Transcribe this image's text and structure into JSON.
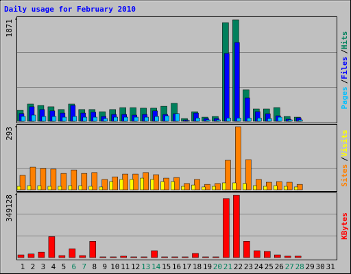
{
  "title": "Daily usage for February 2010",
  "legend_separator": "/",
  "chart_data": [
    {
      "type": "bar",
      "ylim": [
        0,
        1871
      ],
      "yticks": [
        1871
      ],
      "series": [
        {
          "name": "Pages",
          "color": "#00c0ff",
          "values": [
            90,
            113,
            88,
            88,
            75,
            88,
            75,
            75,
            50,
            75,
            75,
            75,
            75,
            88,
            100,
            140,
            12,
            60,
            25,
            25,
            60,
            60,
            60,
            60,
            50,
            75,
            25,
            25,
            null,
            null,
            null
          ]
        },
        {
          "name": "Files",
          "color": "#0000ff",
          "values": [
            140,
            265,
            215,
            190,
            150,
            290,
            150,
            165,
            88,
            125,
            125,
            113,
            125,
            190,
            125,
            138,
            25,
            150,
            50,
            50,
            1243,
            1444,
            427,
            176,
            138,
            100,
            38,
            63,
            null,
            null,
            null
          ]
        },
        {
          "name": "Hits",
          "color": "#00805c",
          "values": [
            200,
            315,
            290,
            265,
            215,
            315,
            215,
            215,
            175,
            215,
            250,
            250,
            240,
            240,
            275,
            330,
            50,
            175,
            75,
            88,
            1808,
            1859,
            578,
            226,
            226,
            251,
            88,
            75,
            null,
            null,
            null
          ]
        }
      ]
    },
    {
      "type": "bar",
      "ylim": [
        0,
        293
      ],
      "yticks": [
        293
      ],
      "series": [
        {
          "name": "Sites",
          "color": "#ff8000",
          "values": [
            67,
            105,
            99,
            96,
            76,
            92,
            76,
            80,
            48,
            60,
            73,
            73,
            80,
            70,
            54,
            57,
            29,
            48,
            25,
            29,
            137,
            293,
            140,
            48,
            35,
            38,
            35,
            25,
            null,
            null,
            null
          ]
        },
        {
          "name": "Visits",
          "color": "#ffff00",
          "values": [
            16,
            19,
            19,
            16,
            16,
            19,
            19,
            16,
            13,
            38,
            48,
            48,
            54,
            48,
            38,
            38,
            16,
            22,
            13,
            16,
            32,
            32,
            29,
            19,
            16,
            19,
            16,
            13,
            null,
            null,
            null
          ]
        }
      ]
    },
    {
      "type": "bar",
      "ylim": [
        0,
        349128
      ],
      "yticks": [
        349128
      ],
      "categories": [
        "1",
        "2",
        "3",
        "4",
        "5",
        "6",
        "7",
        "8",
        "9",
        "10",
        "11",
        "12",
        "13",
        "14",
        "15",
        "16",
        "17",
        "18",
        "19",
        "20",
        "21",
        "22",
        "23",
        "24",
        "25",
        "26",
        "27",
        "28",
        "29",
        "30",
        "31"
      ],
      "category_colors": [
        "#000000",
        "#000000",
        "#000000",
        "#000000",
        "#000000",
        "#00805c",
        "#00805c",
        "#000000",
        "#000000",
        "#000000",
        "#000000",
        "#000000",
        "#00805c",
        "#00805c",
        "#000000",
        "#000000",
        "#000000",
        "#000000",
        "#000000",
        "#00805c",
        "#00805c",
        "#000000",
        "#000000",
        "#000000",
        "#000000",
        "#000000",
        "#00805c",
        "#00805c",
        "#000000",
        "#000000",
        "#000000"
      ],
      "series": [
        {
          "name": "KBytes",
          "color": "#ff0000",
          "values": [
            15000,
            20000,
            30000,
            116000,
            11000,
            49000,
            11000,
            90000,
            4000,
            4000,
            8000,
            4000,
            4000,
            38000,
            4000,
            4000,
            4000,
            23000,
            4000,
            4000,
            327000,
            345000,
            90000,
            38000,
            34000,
            15000,
            8000,
            8000,
            null,
            null,
            null
          ]
        }
      ]
    }
  ]
}
